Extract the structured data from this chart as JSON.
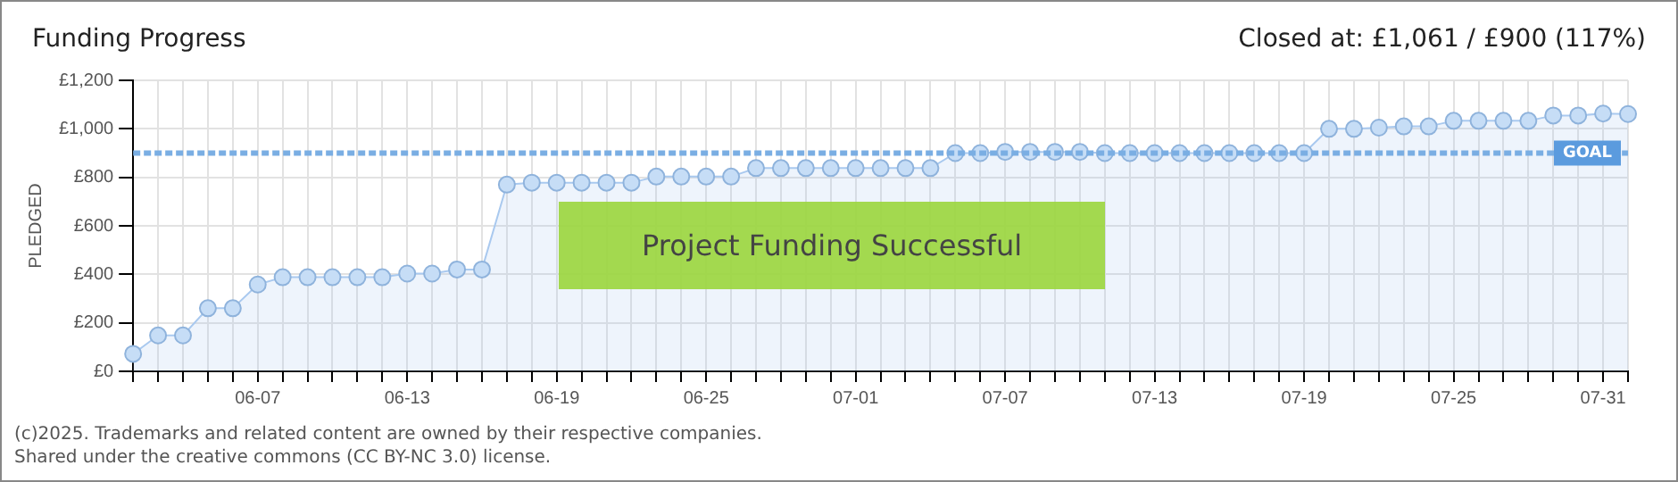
{
  "chart_data": {
    "type": "area",
    "title": "Funding Progress",
    "subtitle": "Closed at:  £1,061 /  £900 (117%)",
    "ylabel": "PLEDGED",
    "categories": [
      null,
      null,
      null,
      null,
      null,
      "06-07",
      null,
      null,
      null,
      null,
      null,
      "06-13",
      null,
      null,
      null,
      null,
      null,
      "06-19",
      null,
      null,
      null,
      null,
      null,
      "06-25",
      null,
      null,
      null,
      null,
      null,
      "07-01",
      null,
      null,
      null,
      null,
      null,
      "07-07",
      null,
      null,
      null,
      null,
      null,
      "07-13",
      null,
      null,
      null,
      null,
      null,
      "07-19",
      null,
      null,
      null,
      null,
      null,
      "07-25",
      null,
      null,
      null,
      null,
      null,
      "07-31",
      null
    ],
    "series": [
      {
        "color": "#a9c9ef",
        "values": [
          72,
          148,
          148,
          260,
          260,
          358,
          388,
          388,
          388,
          388,
          388,
          403,
          403,
          420,
          420,
          770,
          778,
          778,
          778,
          778,
          778,
          803,
          803,
          803,
          803,
          838,
          838,
          838,
          838,
          838,
          838,
          838,
          838,
          900,
          900,
          905,
          905,
          905,
          905,
          900,
          900,
          900,
          900,
          900,
          900,
          900,
          900,
          900,
          1000,
          1000,
          1005,
          1010,
          1010,
          1033,
          1033,
          1033,
          1033,
          1055,
          1055,
          1063,
          1061
        ]
      }
    ],
    "ylim": [
      0,
      1200
    ],
    "yticks": [
      {
        "value": 0,
        "label": "£0"
      },
      {
        "value": 200,
        "label": "£200"
      },
      {
        "value": 400,
        "label": "£400"
      },
      {
        "value": 600,
        "label": "£600"
      },
      {
        "value": 800,
        "label": "£800"
      },
      {
        "value": 1000,
        "label": "£1,000"
      },
      {
        "value": 1200,
        "label": "£1,200"
      }
    ],
    "grid": true,
    "legend": false,
    "marker": "circle",
    "ref_lines": [
      {
        "axis": "y",
        "value": 900,
        "label": "GOAL",
        "color": "#7aaee3",
        "line_style": "dashed"
      }
    ],
    "annotations": [
      "Project Funding Successful",
      "(c)2025. Trademarks and related content are owned by their respective companies.",
      "Shared under the creative commons (CC BY-NC 3.0) license."
    ]
  }
}
